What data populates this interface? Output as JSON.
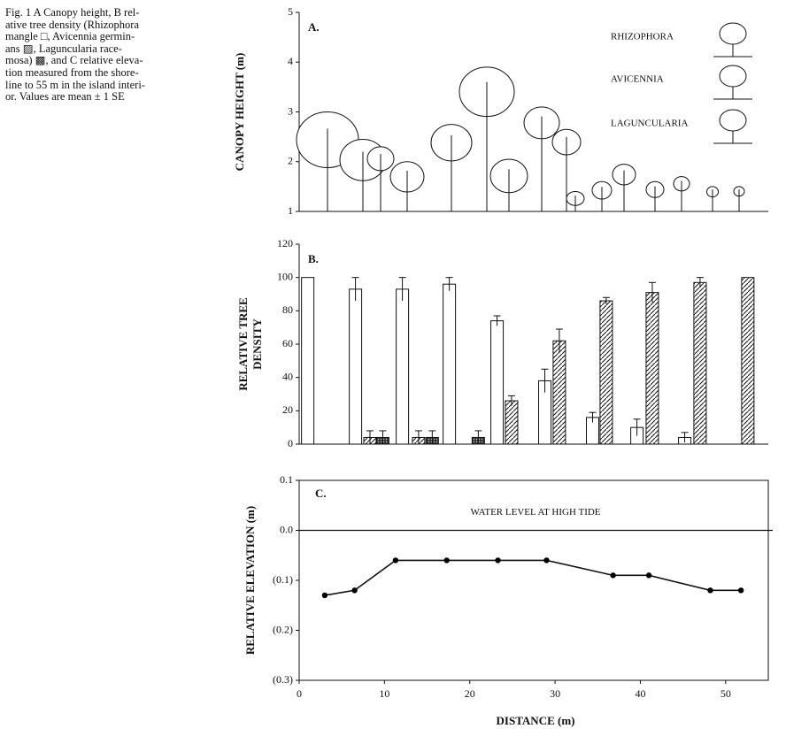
{
  "caption": [
    "Fig. 1  A Canopy height, B rel-",
    "ative tree density (Rhizophora",
    "mangle □, Avicennia germin-",
    "ans ▨, Laguncularia race-",
    "mosa) ▩, and C relative eleva-",
    "tion measured from the shore-",
    "line to 55 m in the island interi-",
    "or. Values are mean ± 1 SE"
  ],
  "chart_data": [
    {
      "type": "illustration",
      "panel_label": "A.",
      "ylabel": "CANOPY HEIGHT  (m)",
      "ylim": [
        1,
        5
      ],
      "yticks": [
        1,
        2,
        3,
        4,
        5
      ],
      "legend_labels": [
        "RHIZOPHORA",
        "AVICENNIA",
        "LAGUNCULARIA"
      ]
    },
    {
      "type": "bar",
      "panel_label": "B.",
      "ylabel": [
        "RELATIVE TREE",
        "DENSITY"
      ],
      "xlim": [
        0,
        55
      ],
      "ylim": [
        0,
        120
      ],
      "yticks": [
        0,
        20,
        40,
        60,
        80,
        100,
        120
      ],
      "series": [
        {
          "color": "#ffffff",
          "pattern": "none",
          "x": [
            1.0,
            6.6,
            12.1,
            17.6,
            23.2,
            28.8,
            34.4,
            39.6,
            45.2
          ],
          "values": [
            100,
            93,
            93,
            96,
            74,
            38,
            16,
            10,
            4
          ],
          "errors": [
            0,
            7,
            7,
            4,
            3,
            7,
            3,
            5,
            3
          ]
        },
        {
          "color": "#ffffff",
          "pattern": "hatch",
          "x": [
            8.3,
            14.0,
            24.9,
            30.5,
            36.0,
            41.4,
            47.0,
            52.6
          ],
          "values": [
            4,
            4,
            26,
            62,
            86,
            91,
            97,
            100
          ],
          "errors": [
            4,
            4,
            3,
            7,
            2,
            6,
            3,
            0
          ]
        },
        {
          "color": "#444444",
          "pattern": "dots",
          "x": [
            9.8,
            15.6,
            21.0
          ],
          "values": [
            4,
            4,
            4
          ],
          "errors": [
            4,
            4,
            4
          ]
        }
      ]
    },
    {
      "type": "line",
      "panel_label": "C.",
      "ylabel": "RELATIVE ELEVATION  (m)",
      "xlabel": "DISTANCE  (m)",
      "annotation": "WATER LEVEL AT HIGH TIDE",
      "xlim": [
        0,
        55
      ],
      "xticks": [
        0,
        10,
        20,
        30,
        40,
        50
      ],
      "ylim": [
        -0.3,
        0.1
      ],
      "yticks": [
        {
          "value": -0.3,
          "label": "(0.3)"
        },
        {
          "value": -0.2,
          "label": "(0.2)"
        },
        {
          "value": -0.1,
          "label": "(0.1)"
        },
        {
          "value": 0,
          "label": "0.0"
        },
        0.1
      ],
      "color": "#000000",
      "series": [
        {
          "x": [
            3.0,
            6.5,
            11.3,
            17.3,
            23.3,
            29.0,
            36.8,
            41.0,
            48.2,
            51.8
          ],
          "values": [
            -0.13,
            -0.12,
            -0.06,
            -0.06,
            -0.06,
            -0.06,
            -0.09,
            -0.09,
            -0.12,
            -0.12
          ]
        }
      ]
    }
  ]
}
